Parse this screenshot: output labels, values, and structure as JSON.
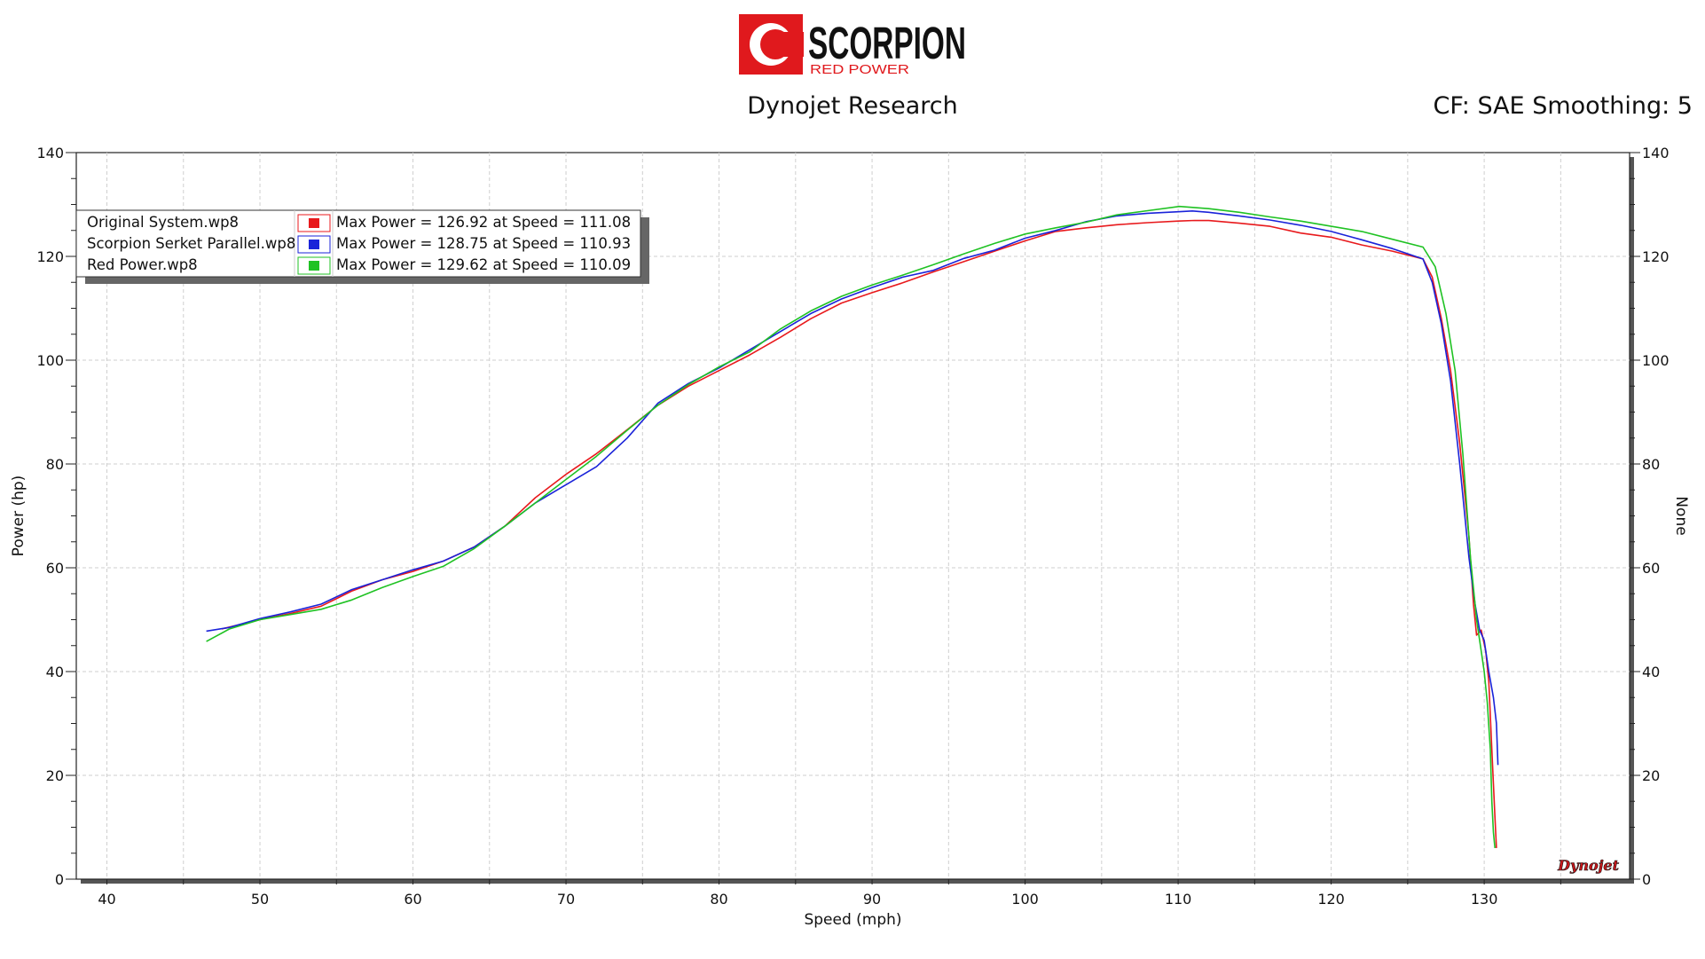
{
  "logo": {
    "brand": "SCORPION",
    "sub": "RED POWER",
    "color": "#e0191d"
  },
  "header": {
    "title": "Dynojet Research",
    "right": "CF: SAE Smoothing: 5"
  },
  "watermark": "Dynojet",
  "chart_data": {
    "type": "line",
    "xlabel": "Speed (mph)",
    "ylabel": "Power (hp)",
    "y2label": "None",
    "xlim": [
      38,
      139.5
    ],
    "ylim": [
      0,
      140
    ],
    "xticks": [
      40,
      50,
      60,
      70,
      80,
      90,
      100,
      110,
      120,
      130
    ],
    "yticks": [
      0,
      20,
      40,
      60,
      80,
      100,
      120,
      140
    ],
    "grid": true,
    "legend_position": "top-left",
    "series": [
      {
        "name": "Original System.wp8",
        "color": "#e8191c",
        "summary": "Max Power = 126.92 at Speed = 111.08",
        "x": [
          47.5,
          50,
          52,
          54,
          56,
          58,
          60,
          62,
          64,
          66,
          68,
          70,
          72,
          74,
          76,
          78,
          80,
          82,
          84,
          86,
          88,
          90,
          92,
          94,
          96,
          98,
          100,
          102,
          104,
          106,
          108,
          110,
          111.08,
          112,
          114,
          116,
          118,
          120,
          122,
          124,
          126,
          126.6,
          127.2,
          127.8,
          128.4,
          129,
          129.3,
          129.5,
          129.8,
          130.1,
          130.3,
          130.5,
          130.7,
          130.8
        ],
        "y": [
          48.2,
          50,
          51.2,
          52.6,
          55.5,
          57.7,
          59.3,
          61.3,
          64,
          68,
          73.5,
          78,
          82,
          86.6,
          91.3,
          95,
          98,
          101,
          104.4,
          108,
          111,
          113,
          114.9,
          117,
          119,
          121,
          123,
          124.8,
          125.5,
          126.1,
          126.5,
          126.8,
          126.92,
          126.9,
          126.4,
          125.8,
          124.5,
          123.7,
          122.2,
          121,
          119.5,
          116,
          108,
          98,
          84,
          66,
          53,
          47,
          48,
          44,
          38,
          25,
          12,
          6
        ]
      },
      {
        "name": "Scorpion Serket Parallel.wp8",
        "color": "#1a23d9",
        "summary": "Max Power = 128.75 at Speed = 110.93",
        "x": [
          46.5,
          48,
          50,
          52,
          54,
          56,
          58,
          60,
          62,
          64,
          66,
          68,
          70,
          72,
          74,
          76,
          78,
          80,
          82,
          84,
          86,
          88,
          90,
          92,
          94,
          96,
          98,
          100,
          102,
          104,
          106,
          108,
          110,
          110.93,
          112,
          114,
          116,
          118,
          120,
          122,
          124,
          126,
          126.6,
          127.2,
          127.8,
          128.4,
          129,
          129.4,
          129.7,
          130,
          130.3,
          130.6,
          130.8,
          130.9
        ],
        "y": [
          47.8,
          48.5,
          50.2,
          51.5,
          53,
          55.8,
          57.7,
          59.6,
          61.3,
          64,
          68,
          72.5,
          76,
          79.5,
          85,
          91.7,
          95.5,
          98.5,
          102,
          105.5,
          109,
          111.8,
          114,
          116,
          117.3,
          119.6,
          121.2,
          123.5,
          125,
          126.7,
          127.8,
          128.3,
          128.6,
          128.75,
          128.5,
          127.8,
          127,
          126,
          124.8,
          123.2,
          121.5,
          119.5,
          115,
          107,
          96,
          80,
          62,
          53,
          48,
          46,
          40,
          35,
          30,
          22
        ]
      },
      {
        "name": "Red Power.wp8",
        "color": "#1fc223",
        "summary": "Max Power = 129.62 at Speed = 110.09",
        "x": [
          46.5,
          48,
          50,
          52,
          54,
          56,
          58,
          60,
          62,
          64,
          66,
          68,
          70,
          72,
          74,
          76,
          78,
          80,
          82,
          84,
          86,
          88,
          90,
          92,
          94,
          96,
          98,
          100,
          102,
          104,
          106,
          108,
          110.09,
          112,
          114,
          116,
          118,
          120,
          122,
          124,
          126,
          126.8,
          127.5,
          128.1,
          128.6,
          129.1,
          129.5,
          129.8,
          130,
          130.2,
          130.4,
          130.5,
          130.6,
          130.7
        ],
        "y": [
          45.8,
          48.2,
          50,
          51,
          52,
          53.8,
          56.2,
          58.3,
          60.3,
          63.7,
          68,
          72.5,
          77,
          81.5,
          86.5,
          91.3,
          95.3,
          98.7,
          101.6,
          106,
          109.5,
          112.3,
          114.5,
          116.4,
          118.4,
          120.5,
          122.5,
          124.3,
          125.5,
          126.6,
          128,
          128.8,
          129.62,
          129.2,
          128.5,
          127.6,
          126.8,
          125.8,
          124.8,
          123.3,
          121.8,
          118,
          109,
          98,
          82,
          62,
          50,
          44,
          40,
          34,
          25,
          15,
          9,
          6
        ]
      }
    ]
  }
}
